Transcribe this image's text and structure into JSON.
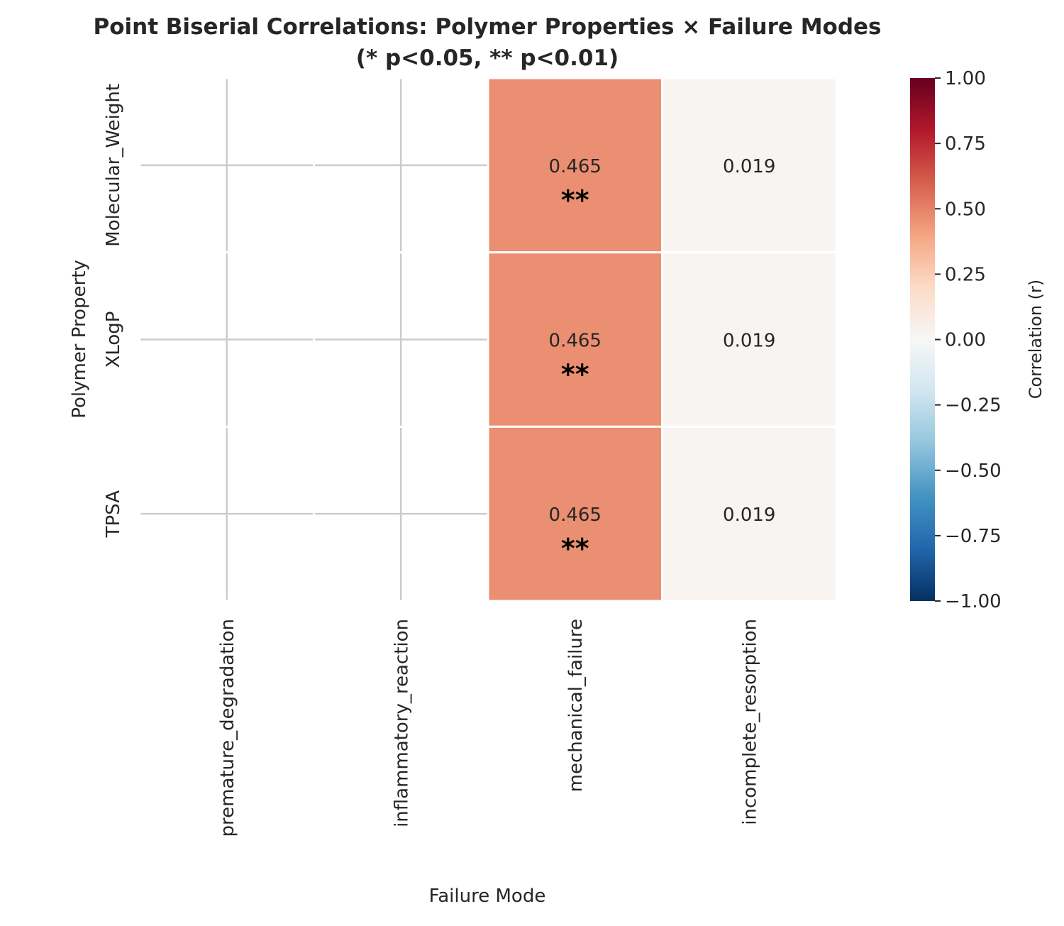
{
  "chart_data": {
    "type": "heatmap",
    "title_line1": "Point Biserial Correlations: Polymer Properties × Failure Modes",
    "title_line2": "(* p<0.05, ** p<0.01)",
    "xlabel": "Failure Mode",
    "ylabel": "Polymer Property",
    "x_categories": [
      "premature_degradation",
      "inflammatory_reaction",
      "mechanical_failure",
      "incomplete_resorption"
    ],
    "y_categories": [
      "Molecular_Weight",
      "XLogP",
      "TPSA"
    ],
    "values": [
      [
        null,
        null,
        0.465,
        0.019
      ],
      [
        null,
        null,
        0.465,
        0.019
      ],
      [
        null,
        null,
        0.465,
        0.019
      ]
    ],
    "value_labels": [
      [
        null,
        null,
        "0.465",
        "0.019"
      ],
      [
        null,
        null,
        "0.465",
        "0.019"
      ],
      [
        null,
        null,
        "0.465",
        "0.019"
      ]
    ],
    "significance": [
      [
        null,
        null,
        "**",
        ""
      ],
      [
        null,
        null,
        "**",
        ""
      ],
      [
        null,
        null,
        "**",
        ""
      ]
    ],
    "colorbar": {
      "label": "Correlation (r)",
      "range": [
        -1,
        1
      ],
      "colormap": "RdBu_r",
      "ticks": [
        1.0,
        0.75,
        0.5,
        0.25,
        0.0,
        -0.25,
        -0.5,
        -0.75,
        -1.0
      ],
      "tick_labels": [
        "1.00",
        "0.75",
        "0.50",
        "0.25",
        "0.00",
        "−0.25",
        "−0.50",
        "−0.75",
        "−1.00"
      ]
    },
    "grid": true
  }
}
